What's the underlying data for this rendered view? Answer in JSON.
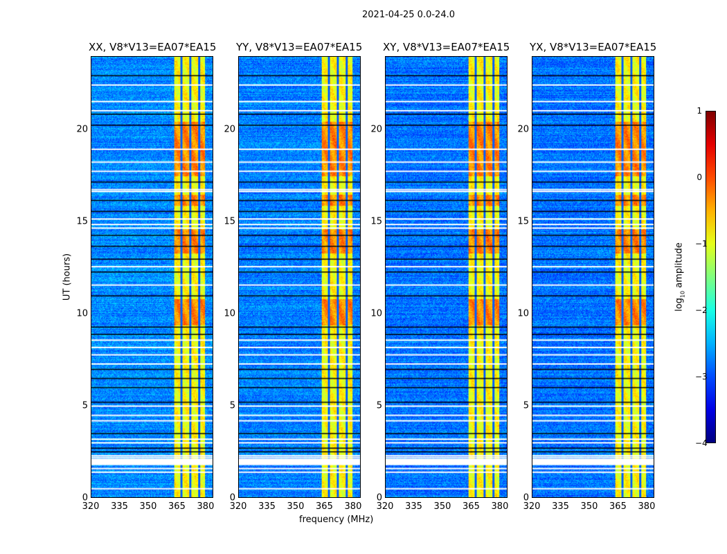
{
  "chart_data": {
    "type": "heatmap",
    "title": "2021-04-25 0.0-24.0",
    "xlabel": "frequency (MHz)",
    "ylabel": "UT (hours)",
    "xlim": [
      320,
      384
    ],
    "ylim": [
      0,
      24
    ],
    "xticks": [
      "320",
      "335",
      "350",
      "365",
      "380"
    ],
    "yticks": [
      "0",
      "5",
      "10",
      "15",
      "20"
    ],
    "panels": [
      {
        "title": "XX, V8*V13=EA07*EA15",
        "level": -2.7
      },
      {
        "title": "YY, V8*V13=EA07*EA15",
        "level": -2.75
      },
      {
        "title": "XY, V8*V13=EA07*EA15",
        "level": -2.8
      },
      {
        "title": "YX, V8*V13=EA07*EA15",
        "level": -2.8
      }
    ],
    "colorbar": {
      "label_main": "log",
      "label_sub": "10",
      "label_rest": " amplitude",
      "range": [
        -4,
        1
      ],
      "ticks": [
        "1",
        "0",
        "−1",
        "−2",
        "−3",
        "−4"
      ],
      "colormap": "jet"
    },
    "rfi_band_mhz": [
      363.5,
      380
    ],
    "band_gaps_mhz": [
      367.3,
      372,
      376.8
    ],
    "strong_rfi_hours": [
      [
        13.3,
        14.6
      ],
      [
        15.9,
        16.5
      ],
      [
        9.4,
        10.8
      ],
      [
        17.5,
        20.5
      ]
    ],
    "flagged_hours_white": [
      2.05,
      2.1,
      2.2,
      2.3,
      1.6,
      1.4,
      0.5,
      3.0,
      3.2,
      4.2,
      4.5,
      5.0,
      7.3,
      7.8,
      8.2,
      8.6,
      11.6,
      12.6,
      14.7,
      14.9,
      15.2,
      16.7,
      16.8,
      17.8,
      18.3,
      19.0,
      21.1,
      21.6,
      22.5
    ],
    "flagged_hours_black": [
      2.5,
      2.7,
      3.5,
      5.2,
      6.0,
      6.5,
      7.0,
      8.9,
      9.3,
      11.0,
      12.3,
      13.0,
      13.7,
      14.3,
      15.6,
      16.2,
      17.2,
      20.3,
      20.9,
      23.0
    ]
  }
}
